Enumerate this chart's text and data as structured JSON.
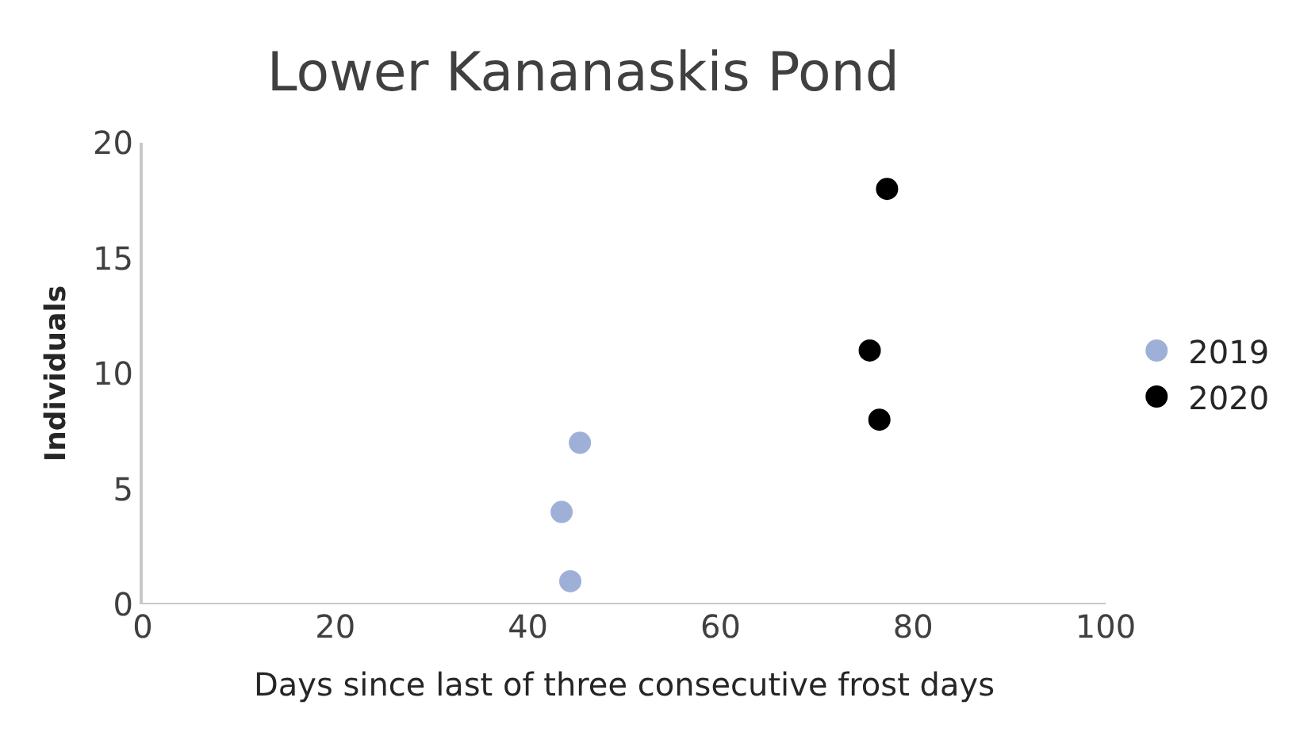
{
  "chart_data": {
    "type": "scatter",
    "title": "Lower Kananaskis Pond",
    "xlabel": "Days since last of three consecutive frost days",
    "ylabel": "Individuals",
    "series": [
      {
        "name": "2019",
        "color": "#9fb0d8",
        "x": [
          43.5,
          44.4,
          45.4
        ],
        "values": [
          4,
          1,
          7
        ]
      },
      {
        "name": "2020",
        "color": "#000000",
        "x": [
          75.5,
          76.5,
          77.3
        ],
        "values": [
          11,
          8,
          18
        ]
      }
    ],
    "xlim": [
      0,
      100
    ],
    "xticks": [
      0,
      20,
      40,
      60,
      80,
      100
    ],
    "ylim": [
      0,
      20
    ],
    "yticks": [
      0,
      5,
      10,
      15,
      20
    ],
    "grid": false,
    "legend": "right",
    "marker": "circle"
  }
}
